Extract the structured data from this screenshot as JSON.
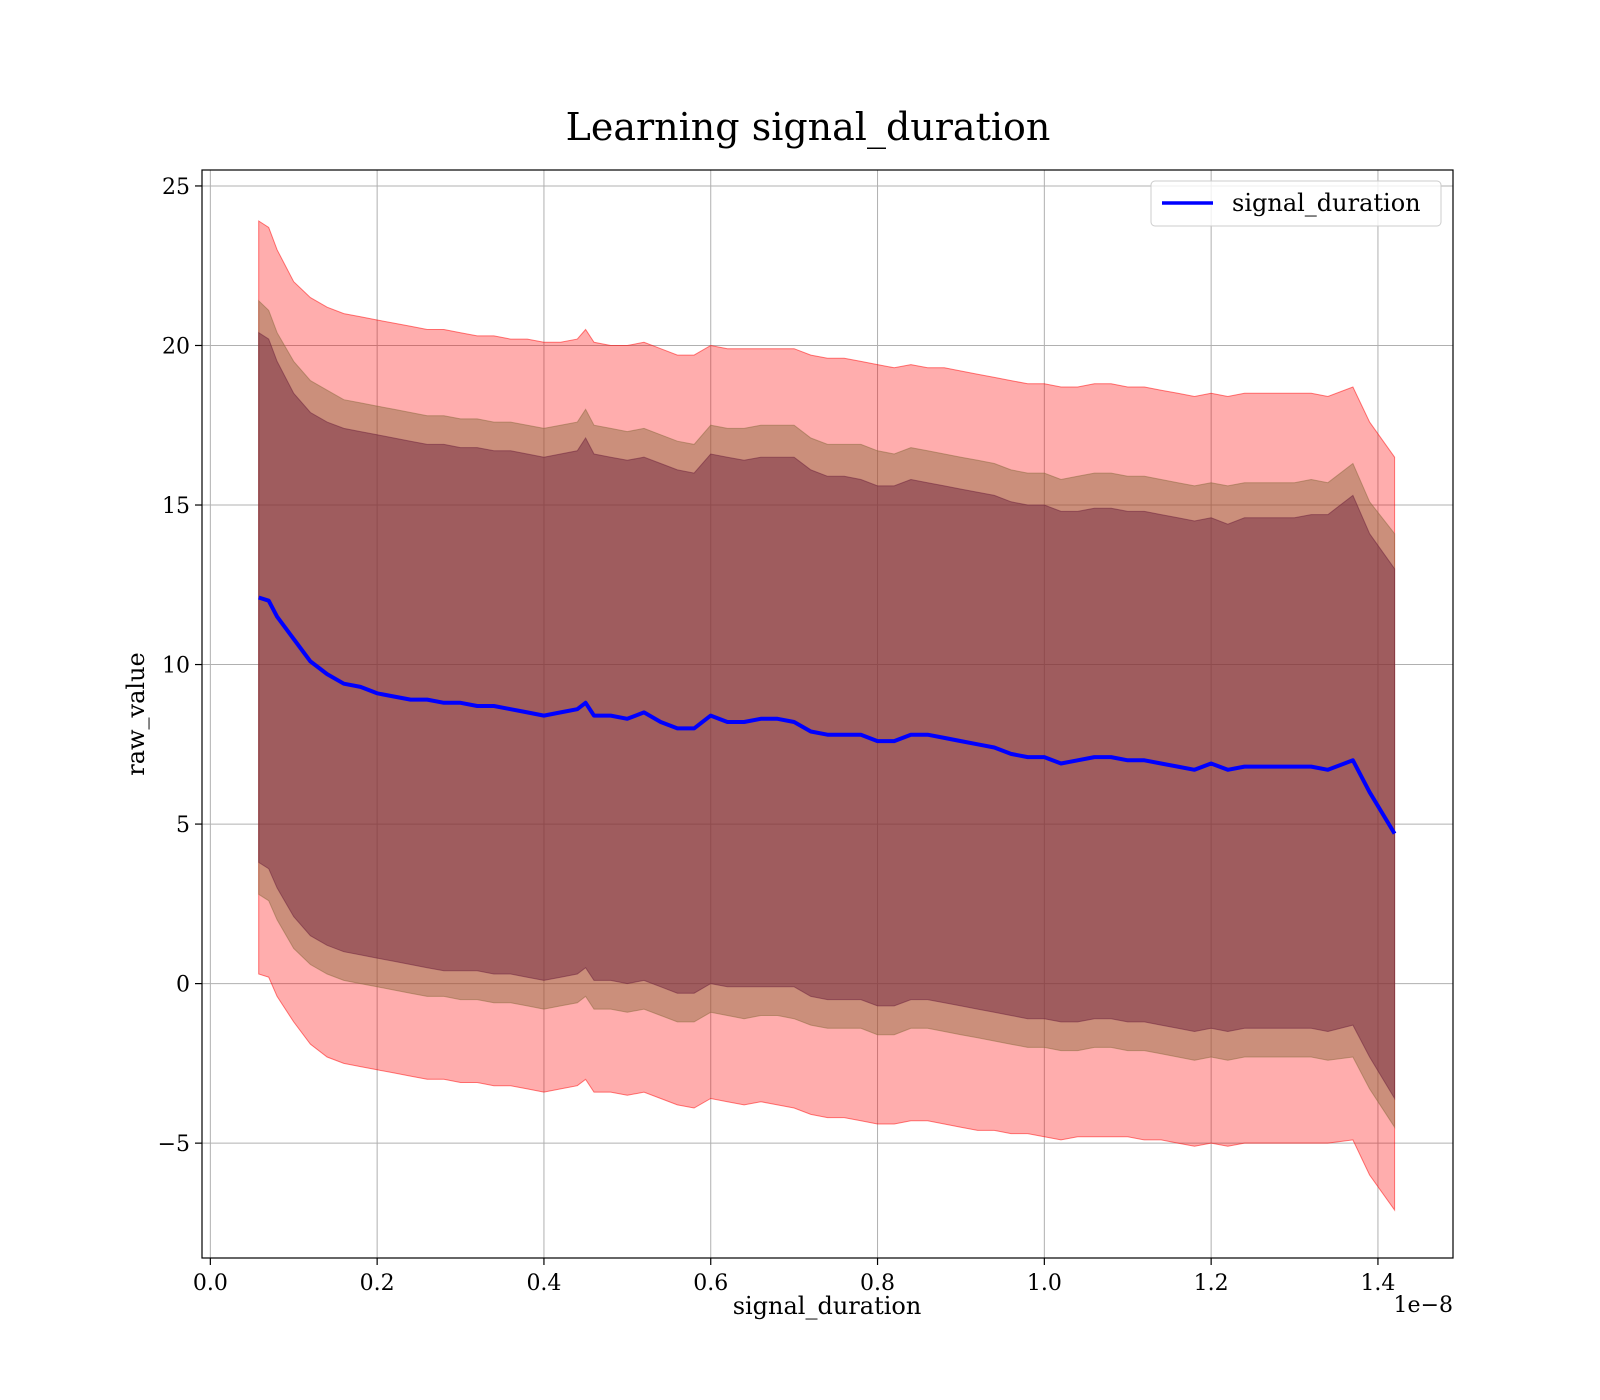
{
  "chart_data": {
    "type": "line",
    "title": "Learning signal_duration",
    "xlabel": "signal_duration",
    "ylabel": "raw_value",
    "x_scale_text": "1e−8",
    "x_scale_factor": 1e-08,
    "xlim": [
      -0.01,
      1.49
    ],
    "ylim": [
      -8.6,
      25.5
    ],
    "xticks": [
      0.0,
      0.2,
      0.4,
      0.6,
      0.8,
      1.0,
      1.2,
      1.4
    ],
    "xtick_labels": [
      "0.0",
      "0.2",
      "0.4",
      "0.6",
      "0.8",
      "1.0",
      "1.2",
      "1.4"
    ],
    "yticks": [
      -5,
      0,
      5,
      10,
      15,
      20,
      25
    ],
    "ytick_labels": [
      "−5",
      "0",
      "5",
      "10",
      "15",
      "20",
      "25"
    ],
    "grid": true,
    "legend": {
      "position": "top-right",
      "entries": [
        "signal_duration"
      ]
    },
    "series": [
      {
        "name": "signal_duration",
        "color": "#0000ff",
        "x": [
          0.058,
          0.07,
          0.08,
          0.1,
          0.12,
          0.14,
          0.16,
          0.18,
          0.2,
          0.22,
          0.24,
          0.26,
          0.28,
          0.3,
          0.32,
          0.34,
          0.36,
          0.38,
          0.4,
          0.42,
          0.44,
          0.45,
          0.46,
          0.48,
          0.5,
          0.52,
          0.54,
          0.56,
          0.58,
          0.6,
          0.62,
          0.64,
          0.66,
          0.68,
          0.7,
          0.72,
          0.74,
          0.76,
          0.78,
          0.8,
          0.82,
          0.84,
          0.86,
          0.88,
          0.9,
          0.92,
          0.94,
          0.96,
          0.98,
          1.0,
          1.02,
          1.04,
          1.06,
          1.08,
          1.1,
          1.12,
          1.14,
          1.16,
          1.18,
          1.2,
          1.22,
          1.24,
          1.26,
          1.28,
          1.3,
          1.32,
          1.34,
          1.37,
          1.39,
          1.42
        ],
        "values": [
          12.1,
          12.0,
          11.5,
          10.8,
          10.1,
          9.7,
          9.4,
          9.3,
          9.1,
          9.0,
          8.9,
          8.9,
          8.8,
          8.8,
          8.7,
          8.7,
          8.6,
          8.5,
          8.4,
          8.5,
          8.6,
          8.8,
          8.4,
          8.4,
          8.3,
          8.5,
          8.2,
          8.0,
          8.0,
          8.4,
          8.2,
          8.2,
          8.3,
          8.3,
          8.2,
          7.9,
          7.8,
          7.8,
          7.8,
          7.6,
          7.6,
          7.8,
          7.8,
          7.7,
          7.6,
          7.5,
          7.4,
          7.2,
          7.1,
          7.1,
          6.9,
          7.0,
          7.1,
          7.1,
          7.0,
          7.0,
          6.9,
          6.8,
          6.7,
          6.9,
          6.7,
          6.8,
          6.8,
          6.8,
          6.8,
          6.8,
          6.7,
          7.0,
          6.0,
          4.7
        ]
      }
    ],
    "bands": [
      {
        "name": "outer band",
        "color": "#ff0000",
        "upper": [
          23.9,
          23.7,
          23.0,
          22.0,
          21.5,
          21.2,
          21.0,
          20.9,
          20.8,
          20.7,
          20.6,
          20.5,
          20.5,
          20.4,
          20.3,
          20.3,
          20.2,
          20.2,
          20.1,
          20.1,
          20.2,
          20.5,
          20.1,
          20.0,
          20.0,
          20.1,
          19.9,
          19.7,
          19.7,
          20.0,
          19.9,
          19.9,
          19.9,
          19.9,
          19.9,
          19.7,
          19.6,
          19.6,
          19.5,
          19.4,
          19.3,
          19.4,
          19.3,
          19.3,
          19.2,
          19.1,
          19.0,
          18.9,
          18.8,
          18.8,
          18.7,
          18.7,
          18.8,
          18.8,
          18.7,
          18.7,
          18.6,
          18.5,
          18.4,
          18.5,
          18.4,
          18.5,
          18.5,
          18.5,
          18.5,
          18.5,
          18.4,
          18.7,
          17.6,
          16.5
        ],
        "lower": [
          0.3,
          0.2,
          -0.4,
          -1.2,
          -1.9,
          -2.3,
          -2.5,
          -2.6,
          -2.7,
          -2.8,
          -2.9,
          -3.0,
          -3.0,
          -3.1,
          -3.1,
          -3.2,
          -3.2,
          -3.3,
          -3.4,
          -3.3,
          -3.2,
          -3.0,
          -3.4,
          -3.4,
          -3.5,
          -3.4,
          -3.6,
          -3.8,
          -3.9,
          -3.6,
          -3.7,
          -3.8,
          -3.7,
          -3.8,
          -3.9,
          -4.1,
          -4.2,
          -4.2,
          -4.3,
          -4.4,
          -4.4,
          -4.3,
          -4.3,
          -4.4,
          -4.5,
          -4.6,
          -4.6,
          -4.7,
          -4.7,
          -4.8,
          -4.9,
          -4.8,
          -4.8,
          -4.8,
          -4.8,
          -4.9,
          -4.9,
          -5.0,
          -5.1,
          -5.0,
          -5.1,
          -5.0,
          -5.0,
          -5.0,
          -5.0,
          -5.0,
          -5.0,
          -4.9,
          -6.0,
          -7.1
        ]
      },
      {
        "name": "middle band",
        "color": "#8b6a3e",
        "upper": [
          21.4,
          21.1,
          20.4,
          19.5,
          18.9,
          18.6,
          18.3,
          18.2,
          18.1,
          18.0,
          17.9,
          17.8,
          17.8,
          17.7,
          17.7,
          17.6,
          17.6,
          17.5,
          17.4,
          17.5,
          17.6,
          18.0,
          17.5,
          17.4,
          17.3,
          17.4,
          17.2,
          17.0,
          16.9,
          17.5,
          17.4,
          17.4,
          17.5,
          17.5,
          17.5,
          17.1,
          16.9,
          16.9,
          16.9,
          16.7,
          16.6,
          16.8,
          16.7,
          16.6,
          16.5,
          16.4,
          16.3,
          16.1,
          16.0,
          16.0,
          15.8,
          15.9,
          16.0,
          16.0,
          15.9,
          15.9,
          15.8,
          15.7,
          15.6,
          15.7,
          15.6,
          15.7,
          15.7,
          15.7,
          15.7,
          15.8,
          15.7,
          16.3,
          15.1,
          14.1
        ],
        "lower": [
          2.8,
          2.6,
          2.0,
          1.1,
          0.6,
          0.3,
          0.1,
          0.0,
          -0.1,
          -0.2,
          -0.3,
          -0.4,
          -0.4,
          -0.5,
          -0.5,
          -0.6,
          -0.6,
          -0.7,
          -0.8,
          -0.7,
          -0.6,
          -0.4,
          -0.8,
          -0.8,
          -0.9,
          -0.8,
          -1.0,
          -1.2,
          -1.2,
          -0.9,
          -1.0,
          -1.1,
          -1.0,
          -1.0,
          -1.1,
          -1.3,
          -1.4,
          -1.4,
          -1.4,
          -1.6,
          -1.6,
          -1.4,
          -1.4,
          -1.5,
          -1.6,
          -1.7,
          -1.8,
          -1.9,
          -2.0,
          -2.0,
          -2.1,
          -2.1,
          -2.0,
          -2.0,
          -2.1,
          -2.1,
          -2.2,
          -2.3,
          -2.4,
          -2.3,
          -2.4,
          -2.3,
          -2.3,
          -2.3,
          -2.3,
          -2.3,
          -2.4,
          -2.3,
          -3.3,
          -4.5
        ]
      },
      {
        "name": "inner band",
        "color": "#6b1f3c",
        "upper": [
          20.4,
          20.2,
          19.5,
          18.5,
          17.9,
          17.6,
          17.4,
          17.3,
          17.2,
          17.1,
          17.0,
          16.9,
          16.9,
          16.8,
          16.8,
          16.7,
          16.7,
          16.6,
          16.5,
          16.6,
          16.7,
          17.1,
          16.6,
          16.5,
          16.4,
          16.5,
          16.3,
          16.1,
          16.0,
          16.6,
          16.5,
          16.4,
          16.5,
          16.5,
          16.5,
          16.1,
          15.9,
          15.9,
          15.8,
          15.6,
          15.6,
          15.8,
          15.7,
          15.6,
          15.5,
          15.4,
          15.3,
          15.1,
          15.0,
          15.0,
          14.8,
          14.8,
          14.9,
          14.9,
          14.8,
          14.8,
          14.7,
          14.6,
          14.5,
          14.6,
          14.4,
          14.6,
          14.6,
          14.6,
          14.6,
          14.7,
          14.7,
          15.3,
          14.1,
          13.0
        ],
        "lower": [
          3.8,
          3.6,
          3.0,
          2.1,
          1.5,
          1.2,
          1.0,
          0.9,
          0.8,
          0.7,
          0.6,
          0.5,
          0.4,
          0.4,
          0.4,
          0.3,
          0.3,
          0.2,
          0.1,
          0.2,
          0.3,
          0.5,
          0.1,
          0.1,
          0.0,
          0.1,
          -0.1,
          -0.3,
          -0.3,
          0.0,
          -0.1,
          -0.1,
          -0.1,
          -0.1,
          -0.1,
          -0.4,
          -0.5,
          -0.5,
          -0.5,
          -0.7,
          -0.7,
          -0.5,
          -0.5,
          -0.6,
          -0.7,
          -0.8,
          -0.9,
          -1.0,
          -1.1,
          -1.1,
          -1.2,
          -1.2,
          -1.1,
          -1.1,
          -1.2,
          -1.2,
          -1.3,
          -1.4,
          -1.5,
          -1.4,
          -1.5,
          -1.4,
          -1.4,
          -1.4,
          -1.4,
          -1.4,
          -1.5,
          -1.3,
          -2.3,
          -3.6
        ]
      }
    ]
  }
}
